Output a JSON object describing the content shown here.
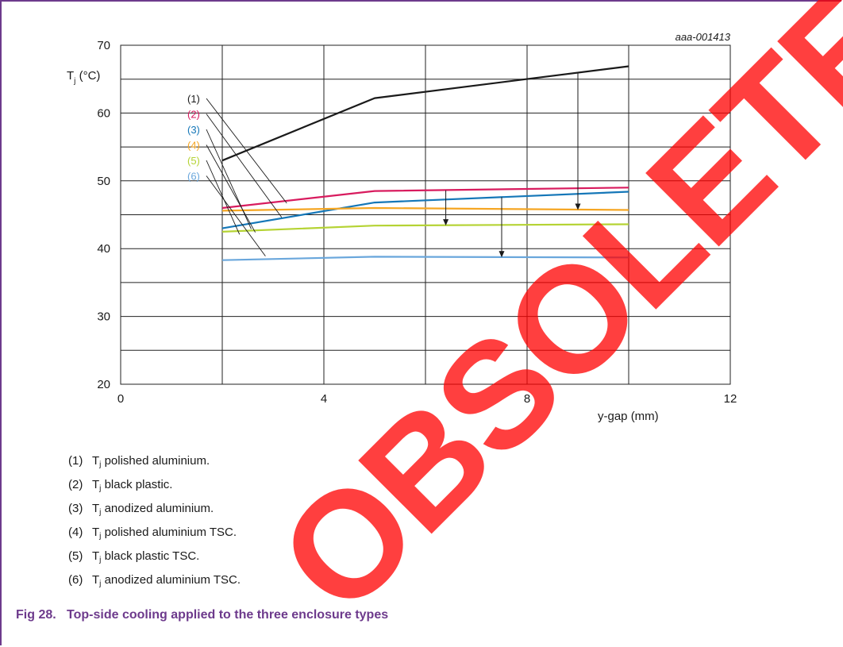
{
  "figure_id": "aaa-001413",
  "legend": [
    {
      "num": "(1)",
      "sym": "T",
      "sub": "j",
      "text": " polished aluminium."
    },
    {
      "num": "(2)",
      "sym": "T",
      "sub": "j",
      "text": " black plastic."
    },
    {
      "num": "(3)",
      "sym": "T",
      "sub": "j",
      "text": " anodized aluminium."
    },
    {
      "num": "(4)",
      "sym": "T",
      "sub": "j",
      "text": " polished aluminium TSC."
    },
    {
      "num": "(5)",
      "sym": "T",
      "sub": "j",
      "text": " black plastic TSC."
    },
    {
      "num": "(6)",
      "sym": "T",
      "sub": "j",
      "text": " anodized aluminium TSC."
    }
  ],
  "caption": "Fig 28.   Top-side cooling applied to the three enclosure types",
  "watermark": "OBSOLETE",
  "colors": {
    "frame": "#6d3a8c",
    "grid": "#222222",
    "watermark": "#ff0000"
  },
  "chart_data": {
    "type": "line",
    "ylabel_main": "T",
    "ylabel_sub": "j",
    "ylabel_unit": " (°C)",
    "xlabel": "y-gap (mm)",
    "xlim": [
      0,
      12
    ],
    "ylim": [
      20,
      70
    ],
    "xticks": [
      0,
      4,
      8,
      12
    ],
    "yticks": [
      20,
      30,
      40,
      50,
      60,
      70
    ],
    "grid": true,
    "series": [
      {
        "name": "(1)",
        "color": "#1a1a1a",
        "x": [
          2,
          5,
          10
        ],
        "y": [
          53,
          62.2,
          66.9
        ]
      },
      {
        "name": "(2)",
        "color": "#d81b5e",
        "x": [
          2,
          5,
          10
        ],
        "y": [
          46,
          48.5,
          49
        ]
      },
      {
        "name": "(3)",
        "color": "#1577b8",
        "x": [
          2,
          5,
          10
        ],
        "y": [
          43,
          46.8,
          48.4
        ]
      },
      {
        "name": "(4)",
        "color": "#f5a623",
        "x": [
          2,
          5,
          10
        ],
        "y": [
          45.6,
          46,
          45.7
        ]
      },
      {
        "name": "(5)",
        "color": "#b5d334",
        "x": [
          2,
          5,
          10
        ],
        "y": [
          42.5,
          43.4,
          43.6
        ]
      },
      {
        "name": "(6)",
        "color": "#6aa7dc",
        "x": [
          2,
          5,
          10
        ],
        "y": [
          38.3,
          38.8,
          38.7
        ]
      }
    ],
    "label_targets": [
      {
        "x": 3.27,
        "y": 46.7
      },
      {
        "x": 3.17,
        "y": 44.6
      },
      {
        "x": 2.57,
        "y": 42.9
      },
      {
        "x": 2.65,
        "y": 42.4
      },
      {
        "x": 2.34,
        "y": 42.1
      },
      {
        "x": 2.85,
        "y": 38.9
      }
    ],
    "arrows": [
      {
        "x": 9.0,
        "from": 65.9,
        "to": 45.7
      },
      {
        "x": 6.4,
        "from": 48.6,
        "to": 43.4
      },
      {
        "x": 7.5,
        "from": 47.6,
        "to": 38.7
      }
    ]
  }
}
